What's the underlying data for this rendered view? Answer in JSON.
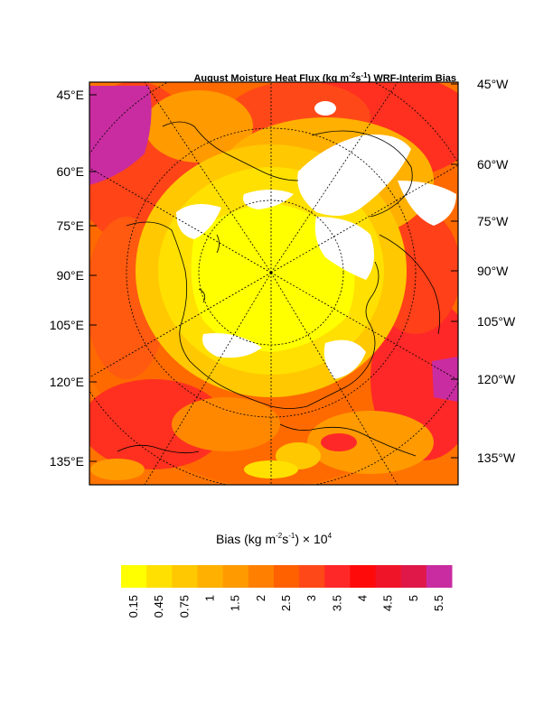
{
  "map": {
    "title_prefix": "August Moisture Heat Flux (kg m",
    "title_sup1": "-2",
    "title_mid": "s",
    "title_sup2": "-1",
    "title_suffix": ") WRF-Interim Bias",
    "left_labels": [
      "45°E",
      "60°E",
      "75°E",
      "90°E",
      "105°E",
      "120°E",
      "135°E"
    ],
    "right_labels": [
      "45°W",
      "60°W",
      "75°W",
      "90°W",
      "105°W",
      "120°W",
      "135°W"
    ],
    "projection": "polar stereographic",
    "field": "WRF minus Interim bias in August moisture heat flux"
  },
  "colorbar": {
    "title_prefix": "Bias (kg m",
    "title_sup1": "-2",
    "title_mid": "s",
    "title_sup2": "-1",
    "title_suffix": ") × 10",
    "title_sup3": "4",
    "levels": [
      "0.15",
      "0.45",
      "0.75",
      "1",
      "1.5",
      "2",
      "2.5",
      "3",
      "3.5",
      "4",
      "4.5",
      "5",
      "5.5"
    ],
    "colors": [
      "#ffff00",
      "#ffe000",
      "#ffc800",
      "#ffb000",
      "#ff9a00",
      "#ff8000",
      "#ff6000",
      "#ff4818",
      "#ff2828",
      "#ff0a0a",
      "#f01428",
      "#e0184a",
      "#c82ca0"
    ]
  },
  "colors": {
    "frame": "#000000",
    "no_data": "#ffffff",
    "dominant_field": "#ff7000"
  }
}
